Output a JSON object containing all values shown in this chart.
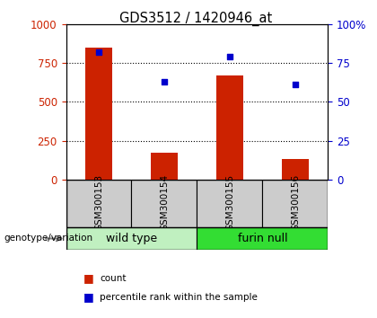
{
  "title": "GDS3512 / 1420946_at",
  "samples": [
    "GSM300153",
    "GSM300154",
    "GSM300155",
    "GSM300156"
  ],
  "counts": [
    850,
    175,
    670,
    130
  ],
  "percentiles": [
    82,
    63,
    79,
    61
  ],
  "groups": [
    {
      "label": "wild type",
      "samples": [
        0,
        1
      ],
      "color": "#b3ffb3"
    },
    {
      "label": "furin null",
      "samples": [
        2,
        3
      ],
      "color": "#33dd33"
    }
  ],
  "group_label": "genotype/variation",
  "bar_color": "#cc2200",
  "point_color": "#0000cc",
  "left_axis_color": "#cc2200",
  "right_axis_color": "#0000cc",
  "left_ylim": [
    0,
    1000
  ],
  "right_ylim": [
    0,
    100
  ],
  "left_yticks": [
    0,
    250,
    500,
    750,
    1000
  ],
  "right_yticks": [
    0,
    25,
    50,
    75,
    100
  ],
  "right_yticklabels": [
    "0",
    "25",
    "50",
    "75",
    "100%"
  ],
  "grid_values": [
    250,
    500,
    750
  ],
  "legend_count_label": "count",
  "legend_pct_label": "percentile rank within the sample",
  "bg_plot": "#ffffff",
  "bg_sample": "#cccccc",
  "bg_group_wild": "#c0f0c0",
  "bg_group_furin": "#33dd33",
  "fig_bg": "#ffffff"
}
